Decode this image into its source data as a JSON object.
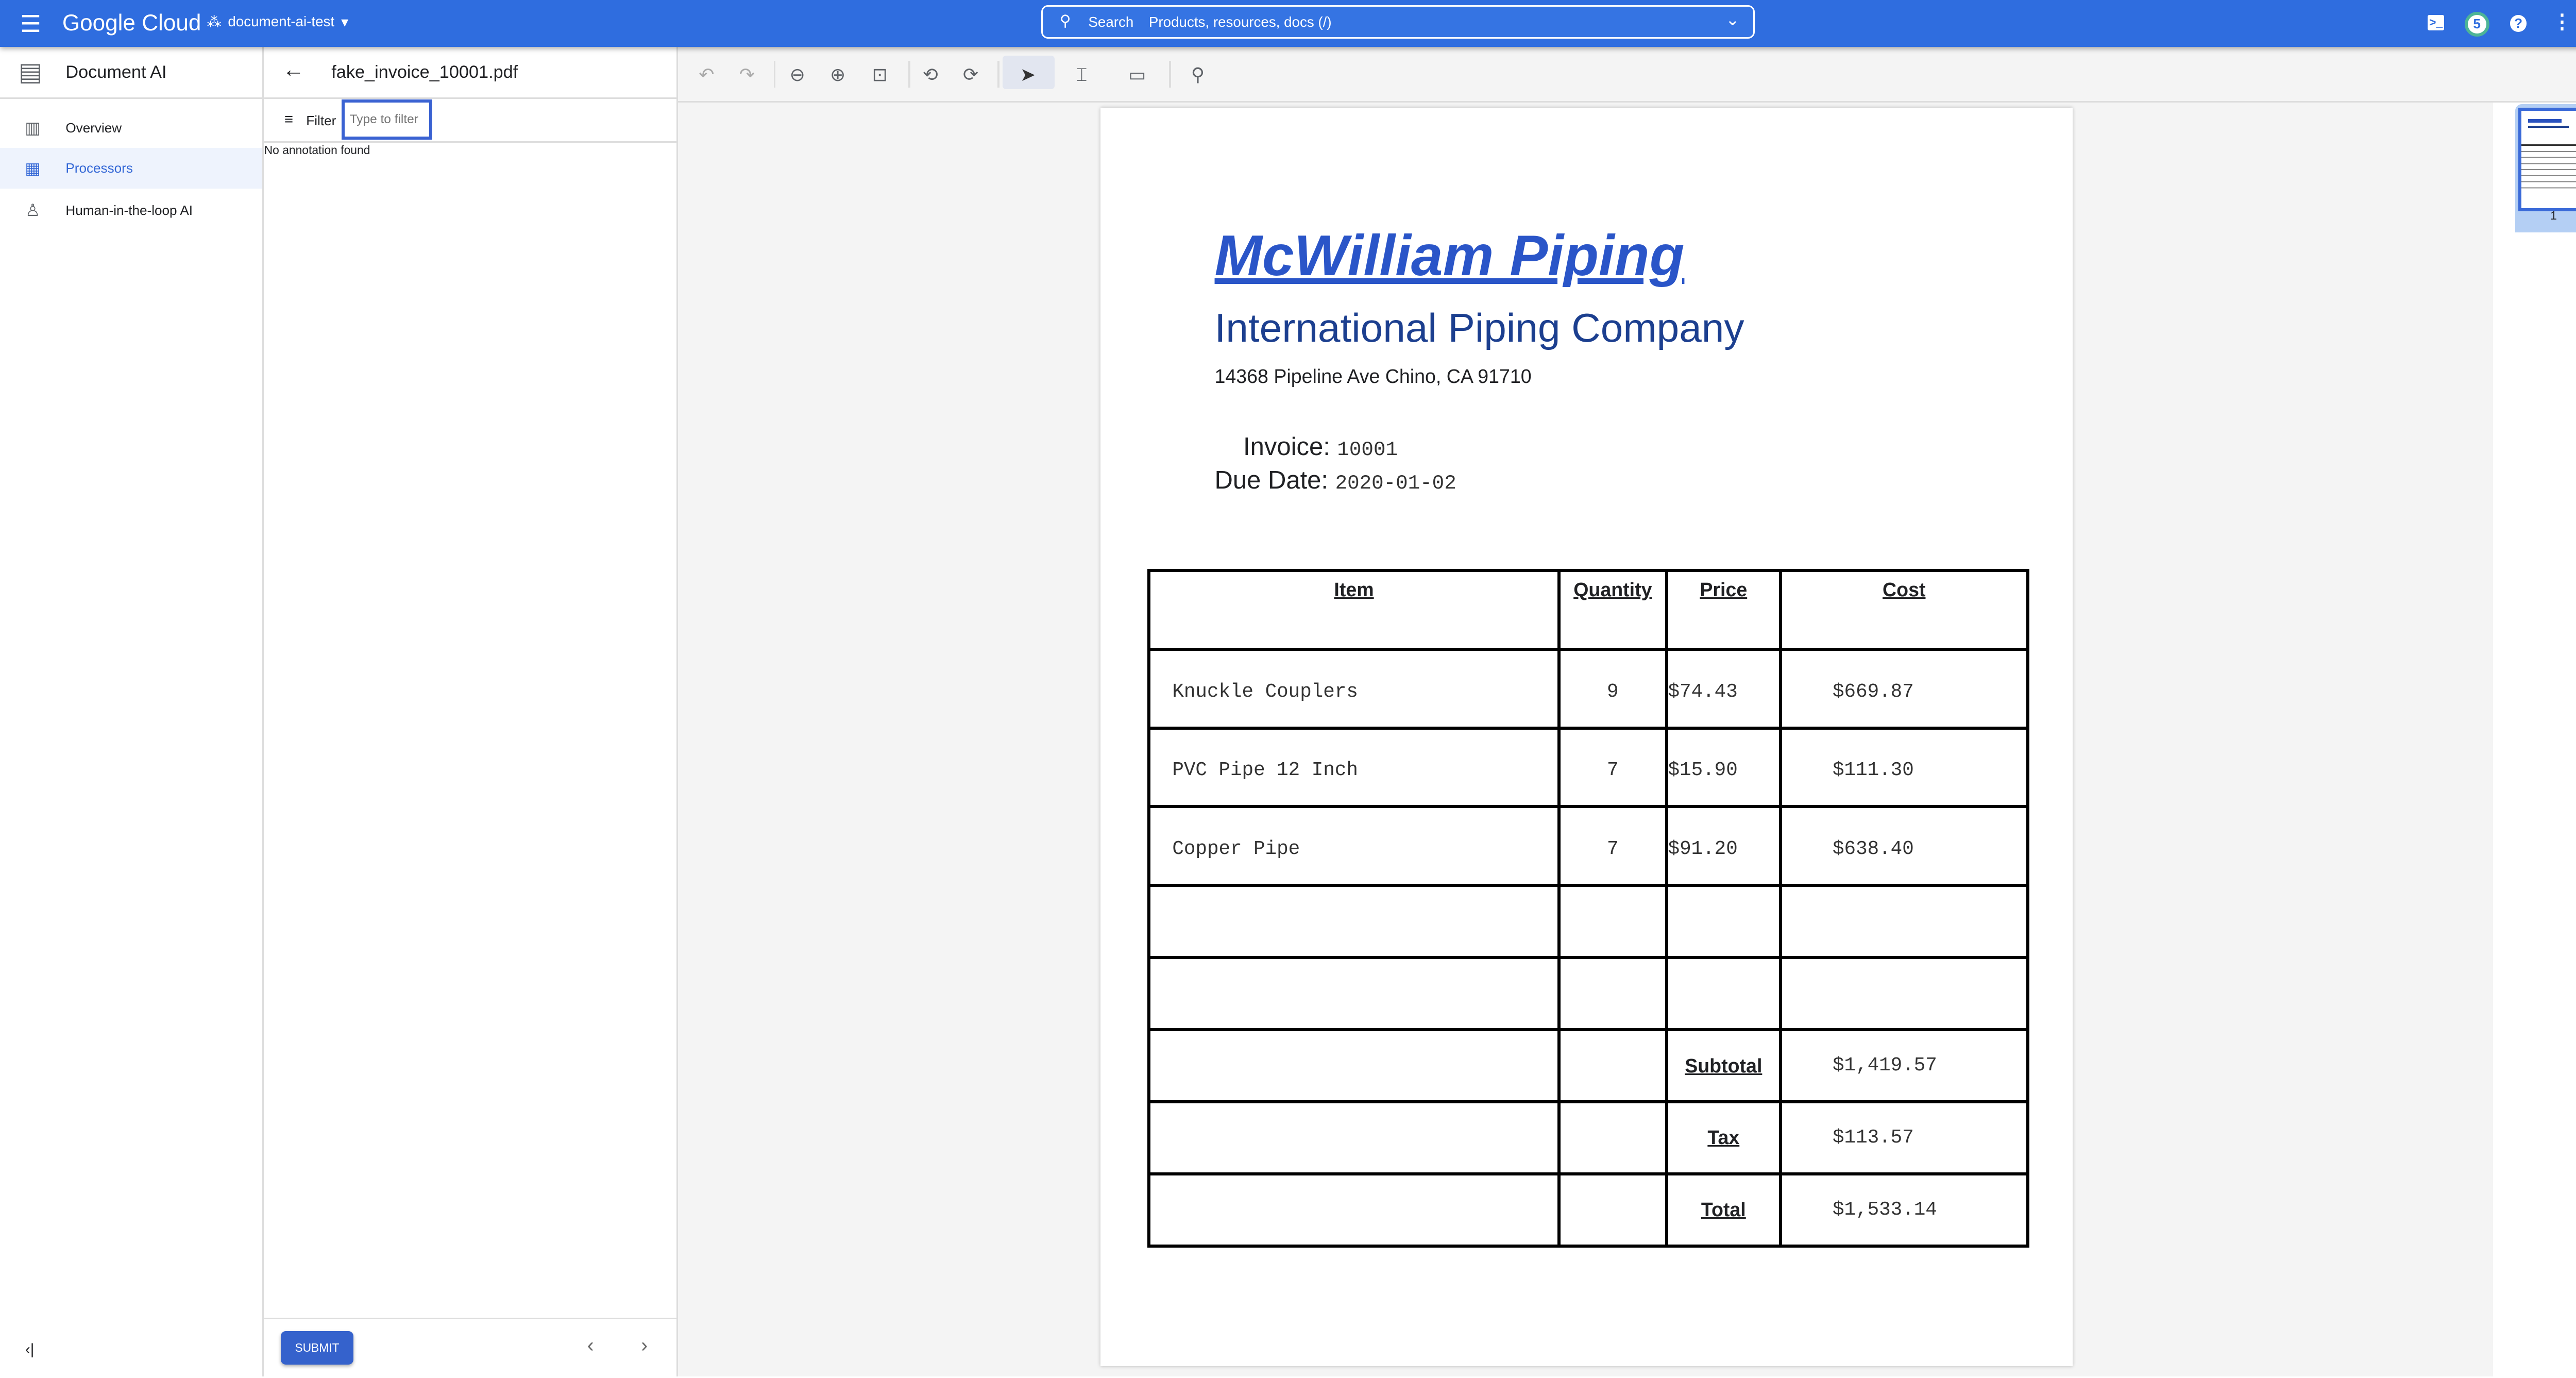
{
  "topbar": {
    "brand": "Google Cloud",
    "project": "document-ai-test",
    "search_label": "Search",
    "search_placeholder": "Products, resources, docs (/)",
    "notifications_count": "5",
    "accent": "#2f6ddf"
  },
  "sidebar": {
    "title": "Document AI",
    "items": [
      {
        "label": "Overview",
        "icon": "dashboard-icon"
      },
      {
        "label": "Processors",
        "icon": "processors-icon",
        "active": true
      },
      {
        "label": "Human-in-the-loop AI",
        "icon": "human-review-icon"
      }
    ]
  },
  "annotations": {
    "filename": "fake_invoice_10001.pdf",
    "filter_label": "Filter",
    "filter_placeholder": "Type to filter",
    "empty_text": "No annotation found",
    "submit_label": "SUBMIT"
  },
  "document": {
    "company": "McWilliam Piping",
    "subtitle": "International Piping Company",
    "address": "14368 Pipeline Ave Chino, CA 91710",
    "invoice_label": "Invoice:",
    "invoice_value": "10001",
    "due_label": "Due Date:",
    "due_value": "2020-01-02",
    "headers": [
      "Item",
      "Quantity",
      "Price",
      "Cost"
    ],
    "rows": [
      [
        "Knuckle Couplers",
        "9",
        "$74.43",
        "$669.87"
      ],
      [
        "PVC Pipe 12 Inch",
        "7",
        "$15.90",
        "$111.30"
      ],
      [
        "Copper Pipe",
        "7",
        "$91.20",
        "$638.40"
      ]
    ],
    "totals": [
      [
        "Subtotal",
        "$1,419.57"
      ],
      [
        "Tax",
        "$113.57"
      ],
      [
        "Total",
        "$1,533.14"
      ]
    ]
  },
  "thumbnails": [
    {
      "page": "1"
    }
  ]
}
